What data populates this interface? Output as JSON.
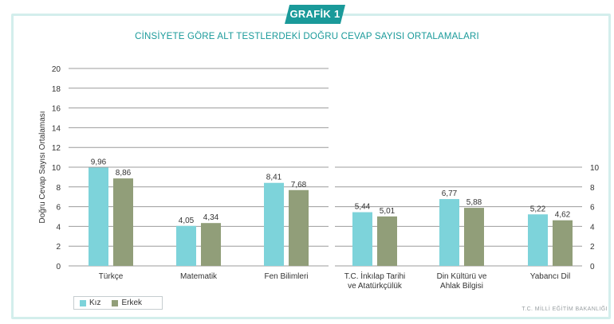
{
  "badge": "GRAFİK 1",
  "title": "CİNSİYETE GÖRE ALT TESTLERDEKİ DOĞRU CEVAP SAYISI ORTALAMALARI",
  "footer": "T.C. MİLLİ EĞİTİM BAKANLIĞI",
  "colors": {
    "kiz": "#7dd3da",
    "erkek": "#919e79",
    "accent": "#1a9a9a",
    "grid": "#9c9c9c"
  },
  "chart_data": [
    {
      "type": "bar",
      "categories": [
        "Türkçe",
        "Matematik",
        "Fen Bilimleri"
      ],
      "series": [
        {
          "name": "Kız",
          "values": [
            9.96,
            4.05,
            8.41
          ]
        },
        {
          "name": "Erkek",
          "values": [
            8.86,
            4.34,
            7.68
          ]
        }
      ],
      "value_labels": {
        "Kız": [
          "9,96",
          "4,05",
          "8,41"
        ],
        "Erkek": [
          "8,86",
          "4,34",
          "7,68"
        ]
      },
      "ylabel": "Doğru Cevap Sayısı Ortalaması",
      "ylim": [
        0,
        20
      ],
      "yticks": [
        "0",
        "2",
        "4",
        "6",
        "8",
        "10",
        "12",
        "14",
        "16",
        "18",
        "20"
      ]
    },
    {
      "type": "bar",
      "categories": [
        [
          "T.C. İnkılap Tarihi",
          "ve Atatürkçülük"
        ],
        [
          "Din Kültürü ve",
          "Ahlak Bilgisi"
        ],
        [
          "Yabancı Dil"
        ]
      ],
      "series": [
        {
          "name": "Kız",
          "values": [
            5.44,
            6.77,
            5.22
          ]
        },
        {
          "name": "Erkek",
          "values": [
            5.01,
            5.88,
            4.62
          ]
        }
      ],
      "value_labels": {
        "Kız": [
          "5,44",
          "6,77",
          "5,22"
        ],
        "Erkek": [
          "5,01",
          "5,88",
          "4,62"
        ]
      },
      "ylim": [
        0,
        10
      ],
      "yticks": [
        "0",
        "2",
        "4",
        "6",
        "8",
        "10"
      ]
    }
  ],
  "legend": [
    {
      "label": "Kız"
    },
    {
      "label": "Erkek"
    }
  ]
}
